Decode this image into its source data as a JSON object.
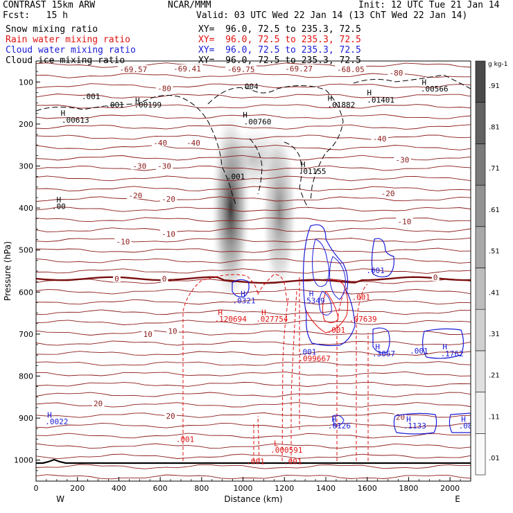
{
  "header": {
    "model": "CONTRAST 15km ARW",
    "org": "NCAR/MMM",
    "init": "Init: 12 UTC Tue 21 Jan 14",
    "fcst": "Fcst:   15 h",
    "valid": "Valid: 03 UTC Wed 22 Jan 14 (13 ChT Wed 22 Jan 14)"
  },
  "fields": [
    {
      "label": "Snow mixing ratio",
      "xy": "XY=  96.0, 72.5 to 235.3, 72.5",
      "color": "#000000"
    },
    {
      "label": "Rain water mixing ratio",
      "xy": "XY=  96.0, 72.5 to 235.3, 72.5",
      "color": "#e01010"
    },
    {
      "label": "Cloud water mixing ratio",
      "xy": "XY=  96.0, 72.5 to 235.3, 72.5",
      "color": "#1a1ad8"
    },
    {
      "label": "Cloud ice mixing ratio",
      "xy": "XY=  96.0, 72.5 to 235.3, 72.5",
      "color": "#000000"
    }
  ],
  "chart_data": {
    "type": "contour",
    "xlabel": "Distance (km)",
    "ylabel": "Pressure (hPa)",
    "xlim": [
      0,
      2100
    ],
    "ylim": [
      1050,
      50
    ],
    "xticks": [
      0,
      200,
      400,
      600,
      800,
      1000,
      1200,
      1400,
      1600,
      1800,
      2000
    ],
    "yticks": [
      100,
      200,
      300,
      400,
      500,
      600,
      700,
      800,
      900,
      1000
    ],
    "west_label": "W",
    "east_label": "E",
    "colorbar": {
      "unit": "g kg-1",
      "ticks": [
        ".01",
        ".11",
        ".21",
        ".31",
        ".41",
        ".51",
        ".61",
        ".71",
        ".81",
        ".91"
      ]
    },
    "temperature_contours": [
      {
        "label": "20",
        "p": 880
      },
      {
        "label": "10",
        "p": 690
      },
      {
        "label": "0",
        "p": 568
      },
      {
        "label": "-10",
        "p": 430
      },
      {
        "label": "-20",
        "p": 375
      },
      {
        "label": "-30",
        "p": 300
      },
      {
        "label": "-40",
        "p": 245
      },
      {
        "label": "-80",
        "p": 120
      }
    ],
    "temp_labels": [
      {
        "t": "-69.57",
        "x": 470,
        "p": 70
      },
      {
        "t": "-69.41",
        "x": 730,
        "p": 68
      },
      {
        "t": "-69.75",
        "x": 990,
        "p": 70
      },
      {
        "t": "-69.27",
        "x": 1270,
        "p": 68
      },
      {
        "t": "-68.05",
        "x": 1520,
        "p": 70
      },
      {
        "t": "-80",
        "x": 1740,
        "p": 78
      },
      {
        "t": "-80",
        "x": 620,
        "p": 115
      },
      {
        "t": "-40",
        "x": 600,
        "p": 245
      },
      {
        "t": "-40",
        "x": 760,
        "p": 245
      },
      {
        "t": "-40",
        "x": 1660,
        "p": 235
      },
      {
        "t": "-30",
        "x": 500,
        "p": 300
      },
      {
        "t": "-30",
        "x": 620,
        "p": 300
      },
      {
        "t": "-30",
        "x": 1770,
        "p": 285
      },
      {
        "t": "-20",
        "x": 480,
        "p": 370
      },
      {
        "t": "-20",
        "x": 640,
        "p": 378
      },
      {
        "t": "-20",
        "x": 1700,
        "p": 365
      },
      {
        "t": "-10",
        "x": 420,
        "p": 480
      },
      {
        "t": "-10",
        "x": 640,
        "p": 462
      },
      {
        "t": "-10",
        "x": 1780,
        "p": 432
      },
      {
        "t": "0",
        "x": 390,
        "p": 568
      },
      {
        "t": "0",
        "x": 620,
        "p": 568
      },
      {
        "t": "0",
        "x": 1930,
        "p": 565
      },
      {
        "t": "10",
        "x": 540,
        "p": 700
      },
      {
        "t": "10",
        "x": 660,
        "p": 693
      },
      {
        "t": "20",
        "x": 300,
        "p": 865
      },
      {
        "t": "20",
        "x": 650,
        "p": 895
      },
      {
        "t": "20",
        "x": 1760,
        "p": 897
      }
    ],
    "annotations": [
      {
        "t": "H",
        "x": 490,
        "p": 144,
        "c": "#000000"
      },
      {
        "t": ".001",
        "x": 265,
        "p": 134,
        "c": "#000000"
      },
      {
        "t": ".001",
        "x": 380,
        "p": 154,
        "c": "#000000"
      },
      {
        "t": ".00199",
        "x": 540,
        "p": 154,
        "c": "#000000"
      },
      {
        "t": "H",
        "x": 130,
        "p": 174,
        "c": "#000000"
      },
      {
        "t": ".00613",
        "x": 190,
        "p": 190,
        "c": "#000000"
      },
      {
        "t": ".004",
        "x": 1030,
        "p": 110,
        "c": "#000000"
      },
      {
        "t": "H",
        "x": 1010,
        "p": 178,
        "c": "#000000"
      },
      {
        "t": ".00760",
        "x": 1070,
        "p": 194,
        "c": "#000000"
      },
      {
        "t": "H",
        "x": 1420,
        "p": 138,
        "c": "#000000"
      },
      {
        "t": ".01882",
        "x": 1475,
        "p": 154,
        "c": "#000000"
      },
      {
        "t": "H",
        "x": 1610,
        "p": 125,
        "c": "#000000"
      },
      {
        "t": ".01401",
        "x": 1665,
        "p": 142,
        "c": "#000000"
      },
      {
        "t": "H",
        "x": 1875,
        "p": 100,
        "c": "#000000"
      },
      {
        "t": ".00566",
        "x": 1925,
        "p": 116,
        "c": "#000000"
      },
      {
        "t": "H",
        "x": 1290,
        "p": 296,
        "c": "#000000"
      },
      {
        "t": ".01155",
        "x": 1335,
        "p": 312,
        "c": "#000000"
      },
      {
        "t": ".001",
        "x": 965,
        "p": 325,
        "c": "#000000"
      },
      {
        "t": "H",
        "x": 110,
        "p": 380,
        "c": "#000000"
      },
      {
        "t": ".00",
        "x": 110,
        "p": 396,
        "c": "#000000"
      },
      {
        "t": "H",
        "x": 1000,
        "p": 604,
        "c": "#1a1ad8"
      },
      {
        "t": ".0321",
        "x": 1005,
        "p": 620,
        "c": "#1a1ad8"
      },
      {
        "t": "H",
        "x": 1330,
        "p": 604,
        "c": "#1a1ad8"
      },
      {
        "t": ".5349",
        "x": 1340,
        "p": 620,
        "c": "#1a1ad8"
      },
      {
        "t": ".001",
        "x": 1640,
        "p": 548,
        "c": "#1a1ad8"
      },
      {
        "t": ".001",
        "x": 1570,
        "p": 612,
        "c": "#e01010"
      },
      {
        "t": "H",
        "x": 890,
        "p": 648,
        "c": "#e01010"
      },
      {
        "t": ".120694",
        "x": 940,
        "p": 664,
        "c": "#e01010"
      },
      {
        "t": "H",
        "x": 1100,
        "p": 648,
        "c": "#e01010"
      },
      {
        "t": ".027754",
        "x": 1140,
        "p": 664,
        "c": "#e01010"
      },
      {
        "t": ".07639",
        "x": 1580,
        "p": 664,
        "c": "#e01010"
      },
      {
        "t": ".001",
        "x": 1450,
        "p": 690,
        "c": "#e01010"
      },
      {
        "t": ".001",
        "x": 1310,
        "p": 742,
        "c": "#1a1ad8"
      },
      {
        "t": ".099667",
        "x": 1345,
        "p": 758,
        "c": "#e01010"
      },
      {
        "t": "H",
        "x": 1650,
        "p": 730,
        "c": "#1a1ad8"
      },
      {
        "t": ".3067",
        "x": 1680,
        "p": 746,
        "c": "#1a1ad8"
      },
      {
        "t": ".001",
        "x": 1850,
        "p": 740,
        "c": "#1a1ad8"
      },
      {
        "t": "H",
        "x": 1975,
        "p": 730,
        "c": "#1a1ad8"
      },
      {
        "t": ".1762",
        "x": 2010,
        "p": 746,
        "c": "#1a1ad8"
      },
      {
        "t": "H",
        "x": 65,
        "p": 892,
        "c": "#1a1ad8"
      },
      {
        "t": ".0022",
        "x": 100,
        "p": 908,
        "c": "#1a1ad8"
      },
      {
        "t": "H",
        "x": 1440,
        "p": 902,
        "c": "#1a1ad8"
      },
      {
        "t": ".0126",
        "x": 1465,
        "p": 918,
        "c": "#1a1ad8"
      },
      {
        "t": "H",
        "x": 1800,
        "p": 902,
        "c": "#1a1ad8"
      },
      {
        "t": ".1133",
        "x": 1830,
        "p": 918,
        "c": "#1a1ad8"
      },
      {
        "t": "H",
        "x": 2065,
        "p": 902,
        "c": "#1a1ad8"
      },
      {
        "t": ".08",
        "x": 2075,
        "p": 918,
        "c": "#1a1ad8"
      },
      {
        "t": ".001",
        "x": 720,
        "p": 950,
        "c": "#e01010"
      },
      {
        "t": "L",
        "x": 1160,
        "p": 960,
        "c": "#e01010"
      },
      {
        "t": ".000591",
        "x": 1210,
        "p": 976,
        "c": "#e01010"
      },
      {
        "t": ".001",
        "x": 1060,
        "p": 1003,
        "c": "#e01010"
      },
      {
        "t": ".001",
        "x": 1240,
        "p": 1003,
        "c": "#e01010"
      }
    ]
  }
}
